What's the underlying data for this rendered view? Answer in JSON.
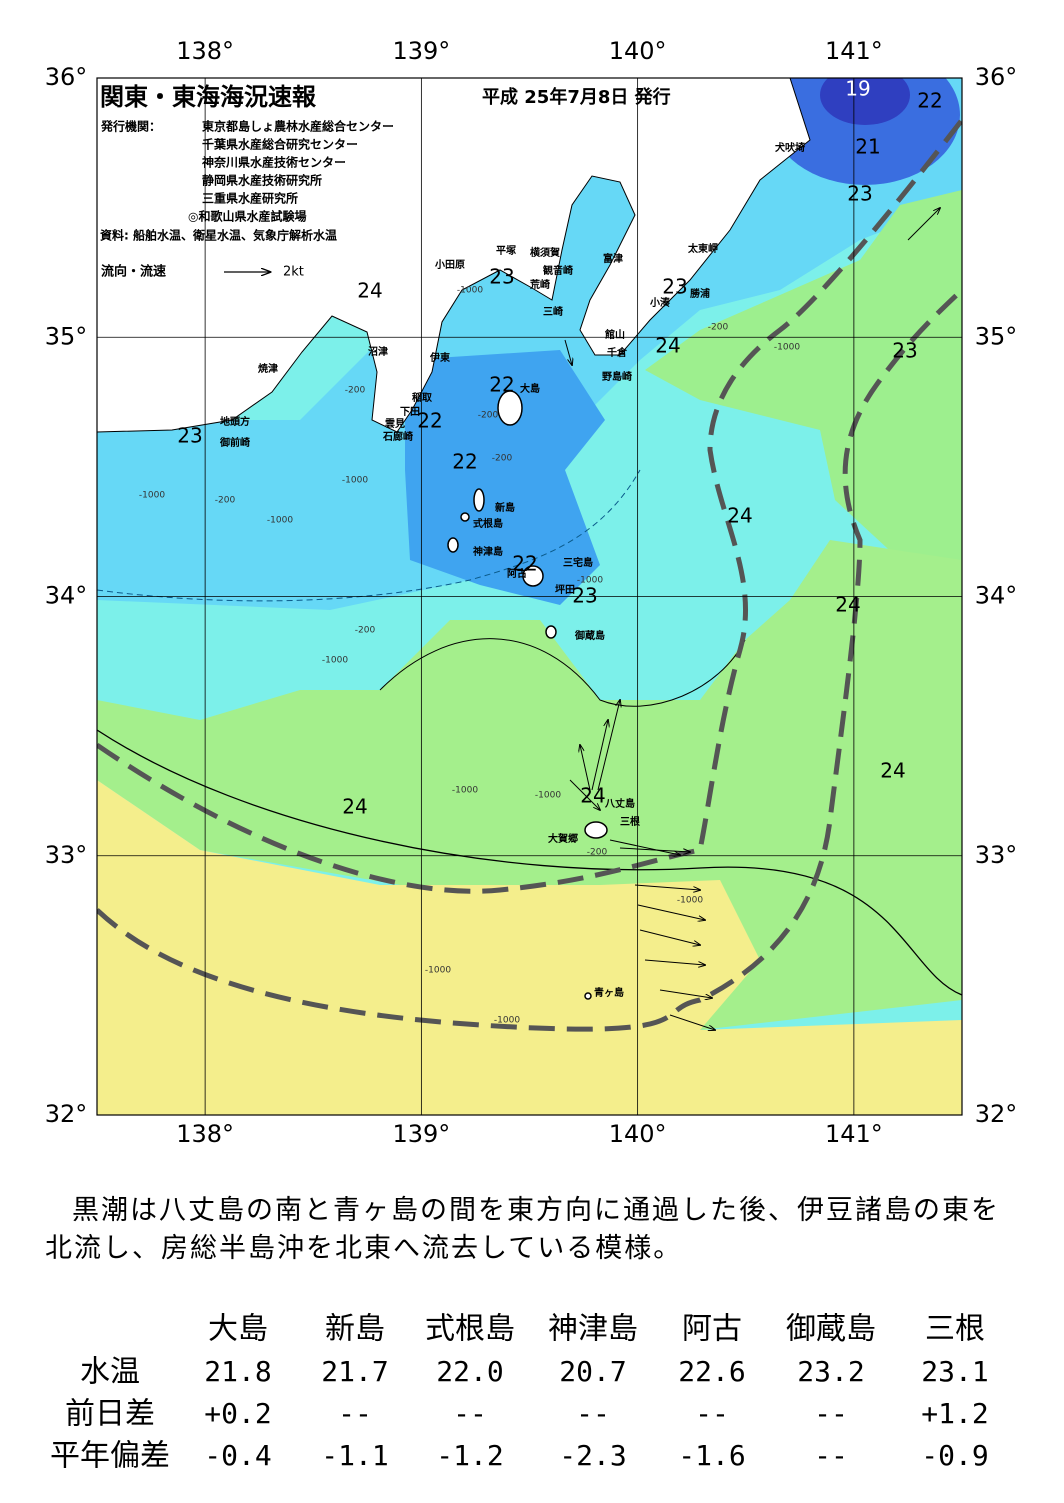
{
  "header": {
    "title": "関東・東海海況速報",
    "date": "平成 25年7月8日 発行",
    "issuer_label": "発行機関：",
    "issuers": [
      "東京都島しょ農林水産総合センター",
      "千葉県水産総合研究センター",
      "神奈川県水産技術センター",
      "静岡県水産技術研究所",
      "三重県水産研究所",
      "◎和歌山県水産試験場"
    ],
    "source": "資料: 船舶水温、衛星水温、気象庁解析水温",
    "legend_current": "流向・流速",
    "legend_speed": "2kt"
  },
  "map": {
    "lon_range": [
      137.5,
      141.5
    ],
    "lat_range": [
      32,
      36
    ],
    "lon_ticks": [
      {
        "value": 138,
        "label": "138°"
      },
      {
        "value": 139,
        "label": "139°"
      },
      {
        "value": 140,
        "label": "140°"
      },
      {
        "value": 141,
        "label": "141°"
      }
    ],
    "lat_ticks": [
      {
        "value": 32,
        "label": "32°"
      },
      {
        "value": 33,
        "label": "33°"
      },
      {
        "value": 34,
        "label": "34°"
      },
      {
        "value": 35,
        "label": "35°"
      },
      {
        "value": 36,
        "label": "36°"
      }
    ],
    "isotherm_labels": [
      "19",
      "22",
      "21",
      "23",
      "24",
      "23",
      "23",
      "24",
      "23",
      "22",
      "22",
      "23",
      "22",
      "24",
      "22",
      "23",
      "24",
      "24",
      "24",
      "24"
    ],
    "place_names": [
      "小田原",
      "平塚",
      "横須賀",
      "観音崎",
      "荒崎",
      "富津",
      "三崎",
      "館山",
      "千倉",
      "野島崎",
      "太東岬",
      "勝浦",
      "小湊",
      "犬吠埼",
      "沼津",
      "伊東",
      "焼津",
      "稲取",
      "下田",
      "雲見",
      "石廊崎",
      "地頭方",
      "御前崎",
      "大島",
      "新島",
      "式根島",
      "神津島",
      "三宅島",
      "阿古",
      "坪田",
      "御蔵島",
      "八丈島",
      "三根",
      "大賀郷",
      "青ヶ島"
    ],
    "depth_labels": [
      "-1000",
      "-200",
      "-1000",
      "-200",
      "-200",
      "-200",
      "-1000",
      "-200",
      "-1000",
      "-1000",
      "-200",
      "-1000",
      "-1000",
      "-1000",
      "-1000",
      "-200",
      "-1000",
      "-1000",
      "-1000"
    ]
  },
  "description": "黒潮は八丈島の南と青ヶ島の間を東方向に通過した後、伊豆諸島の東を北流し、房総半島沖を北東へ流去している模様。",
  "table": {
    "columns": [
      "大島",
      "新島",
      "式根島",
      "神津島",
      "阿古",
      "御蔵島",
      "三根"
    ],
    "rows": [
      {
        "label": "水温",
        "cells": [
          "21.8",
          "21.7",
          "22.0",
          "20.7",
          "22.6",
          "23.2",
          "23.1"
        ]
      },
      {
        "label": "前日差",
        "cells": [
          "+0.2",
          "--",
          "--",
          "--",
          "--",
          "--",
          "+1.2"
        ]
      },
      {
        "label": "平年偏差",
        "cells": [
          "-0.4",
          "-1.1",
          "-1.2",
          "-2.3",
          "-1.6",
          "--",
          "-0.9"
        ]
      }
    ]
  }
}
